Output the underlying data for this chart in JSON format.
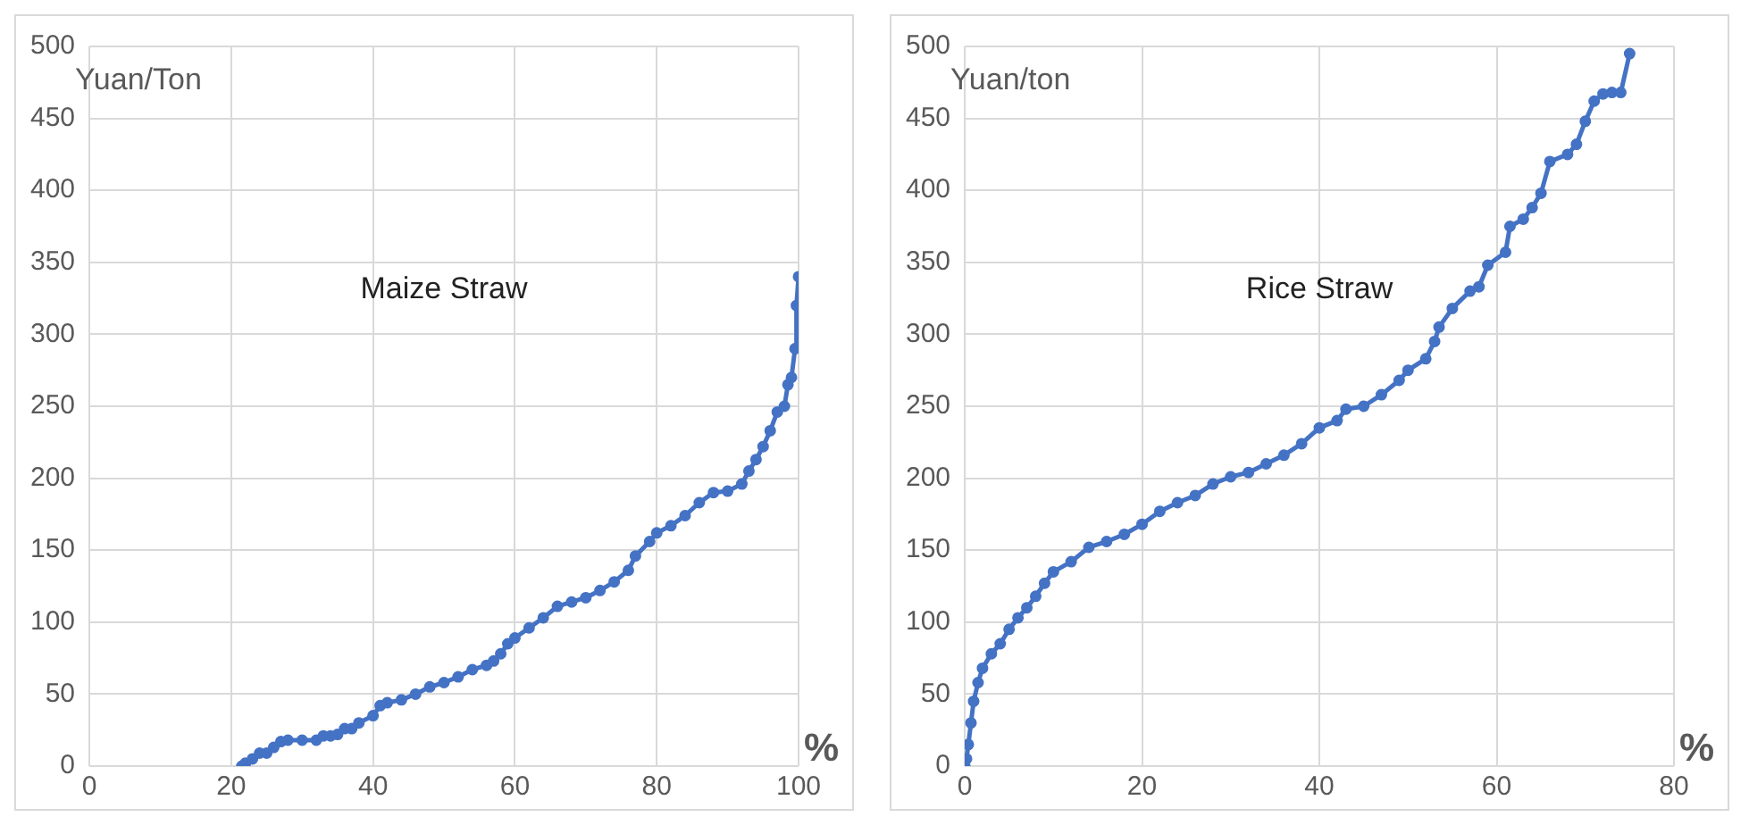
{
  "chart_data": [
    {
      "type": "line",
      "ylabel": "Yuan/Ton",
      "xlabel": "%",
      "annotations": [
        "Maize Straw"
      ],
      "marker": "circle",
      "grid": true,
      "xlim": [
        0,
        100
      ],
      "xticks": [
        0,
        20,
        40,
        60,
        80,
        100
      ],
      "ylim": [
        0,
        500
      ],
      "yticks": [
        0,
        50,
        100,
        150,
        200,
        250,
        300,
        350,
        400,
        450,
        500
      ],
      "series": [
        {
          "color": "#4472c4",
          "x": [
            21.5,
            22,
            23,
            24,
            25,
            26,
            27,
            28,
            30,
            32,
            33,
            34,
            35,
            36,
            37,
            38,
            40,
            41,
            42,
            44,
            46,
            48,
            50,
            52,
            54,
            56,
            57,
            58,
            59,
            60,
            62,
            64,
            66,
            68,
            70,
            72,
            74,
            76,
            77,
            79,
            80,
            82,
            84,
            86,
            88,
            90,
            92,
            93,
            94,
            95,
            96,
            97,
            98,
            98.5,
            99,
            99.5,
            99.7,
            100
          ],
          "values": [
            0,
            2,
            5,
            9,
            9,
            13,
            17,
            18,
            18,
            18,
            21,
            21,
            22,
            26,
            26,
            30,
            35,
            42,
            44,
            46,
            50,
            55,
            58,
            62,
            67,
            70,
            73,
            78,
            85,
            89,
            96,
            103,
            111,
            114,
            117,
            122,
            128,
            136,
            146,
            156,
            162,
            167,
            174,
            183,
            190,
            191,
            196,
            205,
            213,
            222,
            233,
            246,
            250,
            265,
            270,
            290,
            320,
            340
          ]
        }
      ]
    },
    {
      "type": "line",
      "ylabel": "Yuan/ton",
      "xlabel": "%",
      "annotations": [
        "Rice Straw"
      ],
      "marker": "circle",
      "grid": true,
      "xlim": [
        0,
        80
      ],
      "xticks": [
        0,
        20,
        40,
        60,
        80
      ],
      "ylim": [
        0,
        500
      ],
      "yticks": [
        0,
        50,
        100,
        150,
        200,
        250,
        300,
        350,
        400,
        450,
        500
      ],
      "series": [
        {
          "color": "#4472c4",
          "x": [
            0,
            0.2,
            0.4,
            0.7,
            1,
            1.5,
            2,
            3,
            4,
            5,
            6,
            7,
            8,
            9,
            10,
            12,
            14,
            16,
            18,
            20,
            22,
            24,
            26,
            28,
            30,
            32,
            34,
            36,
            38,
            40,
            42,
            43,
            45,
            47,
            49,
            50,
            52,
            53,
            53.5,
            55,
            57,
            58,
            59,
            61,
            61.5,
            63,
            64,
            65,
            66,
            68,
            69,
            70,
            71,
            72,
            73,
            74,
            75
          ],
          "values": [
            0,
            5,
            15,
            30,
            45,
            58,
            68,
            78,
            85,
            95,
            103,
            110,
            118,
            127,
            135,
            142,
            152,
            156,
            161,
            168,
            177,
            183,
            188,
            196,
            201,
            204,
            210,
            216,
            224,
            235,
            240,
            248,
            250,
            258,
            268,
            275,
            283,
            295,
            305,
            318,
            330,
            333,
            348,
            357,
            375,
            380,
            388,
            398,
            420,
            425,
            432,
            448,
            462,
            467,
            468,
            468,
            495
          ]
        }
      ]
    }
  ]
}
